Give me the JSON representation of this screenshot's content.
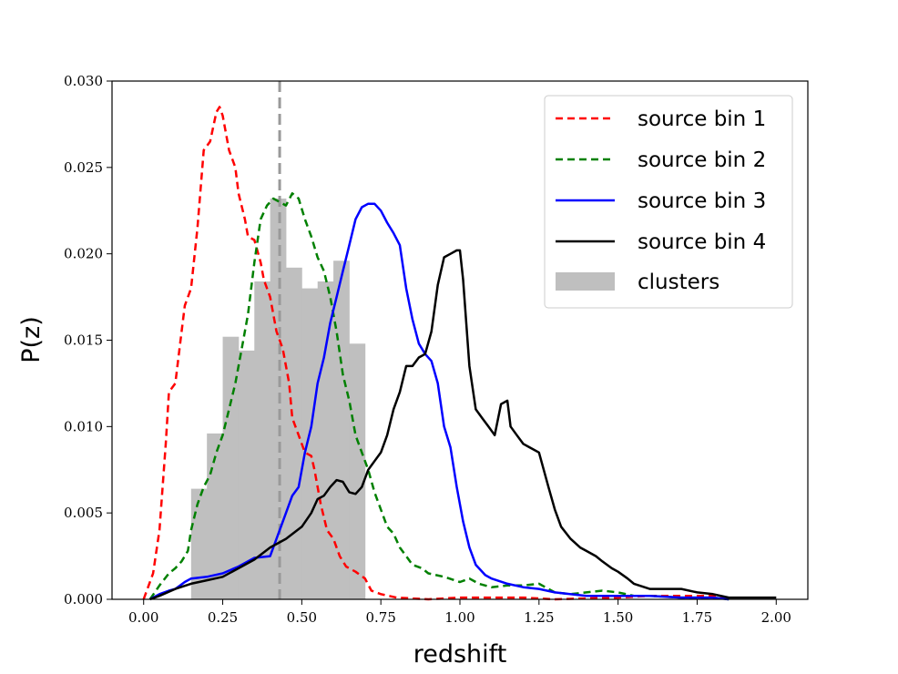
{
  "chart_data": {
    "type": "line",
    "xlabel": "redshift",
    "ylabel": "P(z)",
    "xlim": [
      -0.1,
      2.1
    ],
    "ylim": [
      0.0,
      0.03
    ],
    "xticks": [
      0.0,
      0.25,
      0.5,
      0.75,
      1.0,
      1.25,
      1.5,
      1.75,
      2.0
    ],
    "xtick_labels": [
      "0.00",
      "0.25",
      "0.50",
      "0.75",
      "1.00",
      "1.25",
      "1.50",
      "1.75",
      "2.00"
    ],
    "yticks": [
      0.0,
      0.005,
      0.01,
      0.015,
      0.02,
      0.025,
      0.03
    ],
    "ytick_labels": [
      "0.000",
      "0.005",
      "0.010",
      "0.015",
      "0.020",
      "0.025",
      "0.030"
    ],
    "grid": false,
    "legend_position": "top-right",
    "vline": {
      "x": 0.43,
      "color": "#999999",
      "style": "dashed"
    },
    "histogram": {
      "name": "clusters",
      "color": "#bfbfbf",
      "bins": [
        {
          "x0": 0.15,
          "x1": 0.2,
          "value": 0.0064
        },
        {
          "x0": 0.2,
          "x1": 0.25,
          "value": 0.0096
        },
        {
          "x0": 0.25,
          "x1": 0.3,
          "value": 0.0152
        },
        {
          "x0": 0.3,
          "x1": 0.35,
          "value": 0.0144
        },
        {
          "x0": 0.35,
          "x1": 0.4,
          "value": 0.0184
        },
        {
          "x0": 0.4,
          "x1": 0.45,
          "value": 0.0232
        },
        {
          "x0": 0.45,
          "x1": 0.5,
          "value": 0.0192
        },
        {
          "x0": 0.5,
          "x1": 0.55,
          "value": 0.018
        },
        {
          "x0": 0.55,
          "x1": 0.6,
          "value": 0.0184
        },
        {
          "x0": 0.6,
          "x1": 0.65,
          "value": 0.0196
        },
        {
          "x0": 0.65,
          "x1": 0.7,
          "value": 0.0148
        }
      ]
    },
    "series": [
      {
        "name": "source bin 1",
        "color": "#ff0000",
        "style": "dashed",
        "points": [
          [
            0.0,
            0.0
          ],
          [
            0.03,
            0.0015
          ],
          [
            0.05,
            0.004
          ],
          [
            0.07,
            0.009
          ],
          [
            0.08,
            0.012
          ],
          [
            0.1,
            0.0125
          ],
          [
            0.12,
            0.0155
          ],
          [
            0.13,
            0.017
          ],
          [
            0.15,
            0.018
          ],
          [
            0.17,
            0.0215
          ],
          [
            0.19,
            0.026
          ],
          [
            0.21,
            0.0265
          ],
          [
            0.23,
            0.0282
          ],
          [
            0.24,
            0.0285
          ],
          [
            0.25,
            0.028
          ],
          [
            0.27,
            0.026
          ],
          [
            0.29,
            0.025
          ],
          [
            0.3,
            0.0235
          ],
          [
            0.32,
            0.022
          ],
          [
            0.33,
            0.021
          ],
          [
            0.35,
            0.0208
          ],
          [
            0.37,
            0.0195
          ],
          [
            0.38,
            0.0185
          ],
          [
            0.4,
            0.0175
          ],
          [
            0.42,
            0.0155
          ],
          [
            0.44,
            0.0145
          ],
          [
            0.46,
            0.0125
          ],
          [
            0.47,
            0.0105
          ],
          [
            0.49,
            0.0095
          ],
          [
            0.51,
            0.0085
          ],
          [
            0.53,
            0.0083
          ],
          [
            0.54,
            0.0075
          ],
          [
            0.56,
            0.0055
          ],
          [
            0.58,
            0.004
          ],
          [
            0.6,
            0.0035
          ],
          [
            0.62,
            0.0025
          ],
          [
            0.64,
            0.0019
          ],
          [
            0.67,
            0.0016
          ],
          [
            0.7,
            0.0012
          ],
          [
            0.72,
            0.0005
          ],
          [
            0.75,
            0.0003
          ],
          [
            0.8,
            0.0001
          ],
          [
            0.9,
            0.0
          ],
          [
            1.0,
            0.0001
          ],
          [
            1.1,
            0.0001
          ],
          [
            1.2,
            0.0001
          ],
          [
            1.3,
            0.0
          ],
          [
            1.5,
            0.0001
          ],
          [
            1.6,
            0.0002
          ],
          [
            1.7,
            0.0002
          ],
          [
            1.8,
            0.0002
          ],
          [
            1.85,
            0.0001
          ]
        ]
      },
      {
        "name": "source bin 2",
        "color": "#008000",
        "style": "dashed",
        "points": [
          [
            0.02,
            0.0
          ],
          [
            0.05,
            0.0008
          ],
          [
            0.08,
            0.0015
          ],
          [
            0.1,
            0.0018
          ],
          [
            0.12,
            0.0022
          ],
          [
            0.14,
            0.0028
          ],
          [
            0.15,
            0.004
          ],
          [
            0.17,
            0.0055
          ],
          [
            0.19,
            0.0065
          ],
          [
            0.21,
            0.0072
          ],
          [
            0.23,
            0.0085
          ],
          [
            0.25,
            0.0095
          ],
          [
            0.27,
            0.011
          ],
          [
            0.29,
            0.0125
          ],
          [
            0.31,
            0.0145
          ],
          [
            0.33,
            0.0165
          ],
          [
            0.35,
            0.0195
          ],
          [
            0.37,
            0.022
          ],
          [
            0.39,
            0.0228
          ],
          [
            0.41,
            0.0232
          ],
          [
            0.43,
            0.023
          ],
          [
            0.45,
            0.0228
          ],
          [
            0.47,
            0.0235
          ],
          [
            0.49,
            0.0232
          ],
          [
            0.51,
            0.022
          ],
          [
            0.53,
            0.021
          ],
          [
            0.55,
            0.0198
          ],
          [
            0.57,
            0.019
          ],
          [
            0.59,
            0.0175
          ],
          [
            0.61,
            0.0155
          ],
          [
            0.63,
            0.013
          ],
          [
            0.65,
            0.0115
          ],
          [
            0.67,
            0.0095
          ],
          [
            0.69,
            0.0085
          ],
          [
            0.71,
            0.0075
          ],
          [
            0.73,
            0.0062
          ],
          [
            0.75,
            0.0052
          ],
          [
            0.77,
            0.0042
          ],
          [
            0.79,
            0.0038
          ],
          [
            0.81,
            0.003
          ],
          [
            0.83,
            0.0025
          ],
          [
            0.85,
            0.002
          ],
          [
            0.88,
            0.0018
          ],
          [
            0.9,
            0.0015
          ],
          [
            0.95,
            0.0013
          ],
          [
            1.0,
            0.001
          ],
          [
            1.03,
            0.0012
          ],
          [
            1.06,
            0.0009
          ],
          [
            1.1,
            0.0007
          ],
          [
            1.15,
            0.0008
          ],
          [
            1.2,
            0.0008
          ],
          [
            1.25,
            0.0009
          ],
          [
            1.3,
            0.0004
          ],
          [
            1.35,
            0.0003
          ],
          [
            1.4,
            0.0004
          ],
          [
            1.45,
            0.0005
          ],
          [
            1.5,
            0.0004
          ],
          [
            1.55,
            0.0002
          ],
          [
            1.6,
            0.0002
          ],
          [
            1.7,
            0.0001
          ],
          [
            1.8,
            0.0001
          ],
          [
            1.85,
            0.0
          ]
        ]
      },
      {
        "name": "source bin 3",
        "color": "#0000ff",
        "style": "solid",
        "points": [
          [
            0.02,
            0.0
          ],
          [
            0.05,
            0.0003
          ],
          [
            0.08,
            0.0005
          ],
          [
            0.1,
            0.0006
          ],
          [
            0.13,
            0.001
          ],
          [
            0.15,
            0.0012
          ],
          [
            0.2,
            0.0013
          ],
          [
            0.25,
            0.0015
          ],
          [
            0.3,
            0.0019
          ],
          [
            0.35,
            0.0024
          ],
          [
            0.4,
            0.0025
          ],
          [
            0.42,
            0.0035
          ],
          [
            0.45,
            0.005
          ],
          [
            0.47,
            0.006
          ],
          [
            0.49,
            0.0065
          ],
          [
            0.51,
            0.0085
          ],
          [
            0.53,
            0.01
          ],
          [
            0.55,
            0.0125
          ],
          [
            0.57,
            0.014
          ],
          [
            0.59,
            0.016
          ],
          [
            0.61,
            0.0175
          ],
          [
            0.63,
            0.019
          ],
          [
            0.65,
            0.0205
          ],
          [
            0.67,
            0.022
          ],
          [
            0.69,
            0.0227
          ],
          [
            0.71,
            0.0229
          ],
          [
            0.73,
            0.0229
          ],
          [
            0.75,
            0.0225
          ],
          [
            0.77,
            0.0218
          ],
          [
            0.79,
            0.0212
          ],
          [
            0.81,
            0.0205
          ],
          [
            0.83,
            0.018
          ],
          [
            0.85,
            0.0162
          ],
          [
            0.87,
            0.0148
          ],
          [
            0.89,
            0.0142
          ],
          [
            0.91,
            0.0138
          ],
          [
            0.93,
            0.0125
          ],
          [
            0.95,
            0.01
          ],
          [
            0.97,
            0.0088
          ],
          [
            0.99,
            0.0065
          ],
          [
            1.01,
            0.0045
          ],
          [
            1.03,
            0.003
          ],
          [
            1.05,
            0.002
          ],
          [
            1.08,
            0.0014
          ],
          [
            1.1,
            0.0012
          ],
          [
            1.15,
            0.0009
          ],
          [
            1.2,
            0.0007
          ],
          [
            1.25,
            0.0006
          ],
          [
            1.3,
            0.0004
          ],
          [
            1.4,
            0.0002
          ],
          [
            1.5,
            0.0002
          ],
          [
            1.6,
            0.0002
          ],
          [
            1.7,
            0.0001
          ],
          [
            1.8,
            0.0001
          ],
          [
            1.85,
            0.0
          ]
        ]
      },
      {
        "name": "source bin 4",
        "color": "#000000",
        "style": "solid",
        "points": [
          [
            0.02,
            0.0
          ],
          [
            0.05,
            0.0002
          ],
          [
            0.1,
            0.0006
          ],
          [
            0.15,
            0.0009
          ],
          [
            0.2,
            0.0011
          ],
          [
            0.25,
            0.0013
          ],
          [
            0.3,
            0.0018
          ],
          [
            0.35,
            0.0023
          ],
          [
            0.4,
            0.003
          ],
          [
            0.45,
            0.0035
          ],
          [
            0.5,
            0.0042
          ],
          [
            0.53,
            0.005
          ],
          [
            0.55,
            0.0058
          ],
          [
            0.57,
            0.006
          ],
          [
            0.59,
            0.0065
          ],
          [
            0.61,
            0.0069
          ],
          [
            0.63,
            0.0068
          ],
          [
            0.65,
            0.0062
          ],
          [
            0.67,
            0.0061
          ],
          [
            0.69,
            0.0065
          ],
          [
            0.71,
            0.0075
          ],
          [
            0.73,
            0.008
          ],
          [
            0.75,
            0.0085
          ],
          [
            0.77,
            0.0095
          ],
          [
            0.79,
            0.011
          ],
          [
            0.81,
            0.012
          ],
          [
            0.83,
            0.0135
          ],
          [
            0.85,
            0.0135
          ],
          [
            0.87,
            0.014
          ],
          [
            0.89,
            0.0142
          ],
          [
            0.91,
            0.0155
          ],
          [
            0.93,
            0.0182
          ],
          [
            0.95,
            0.0198
          ],
          [
            0.97,
            0.02
          ],
          [
            0.99,
            0.0202
          ],
          [
            1.0,
            0.0202
          ],
          [
            1.01,
            0.0185
          ],
          [
            1.03,
            0.0135
          ],
          [
            1.05,
            0.011
          ],
          [
            1.07,
            0.0105
          ],
          [
            1.09,
            0.01
          ],
          [
            1.11,
            0.0095
          ],
          [
            1.13,
            0.0113
          ],
          [
            1.15,
            0.0115
          ],
          [
            1.16,
            0.01
          ],
          [
            1.18,
            0.0095
          ],
          [
            1.2,
            0.009
          ],
          [
            1.22,
            0.0088
          ],
          [
            1.25,
            0.0085
          ],
          [
            1.28,
            0.0065
          ],
          [
            1.3,
            0.0052
          ],
          [
            1.32,
            0.0042
          ],
          [
            1.35,
            0.0035
          ],
          [
            1.38,
            0.003
          ],
          [
            1.4,
            0.0028
          ],
          [
            1.43,
            0.0025
          ],
          [
            1.45,
            0.0022
          ],
          [
            1.48,
            0.0018
          ],
          [
            1.5,
            0.0016
          ],
          [
            1.53,
            0.0012
          ],
          [
            1.55,
            0.0009
          ],
          [
            1.6,
            0.0006
          ],
          [
            1.65,
            0.0006
          ],
          [
            1.7,
            0.0006
          ],
          [
            1.75,
            0.0004
          ],
          [
            1.8,
            0.0003
          ],
          [
            1.85,
            0.0001
          ],
          [
            1.9,
            0.0001
          ],
          [
            1.95,
            0.0001
          ],
          [
            2.0,
            0.0001
          ]
        ]
      }
    ]
  }
}
